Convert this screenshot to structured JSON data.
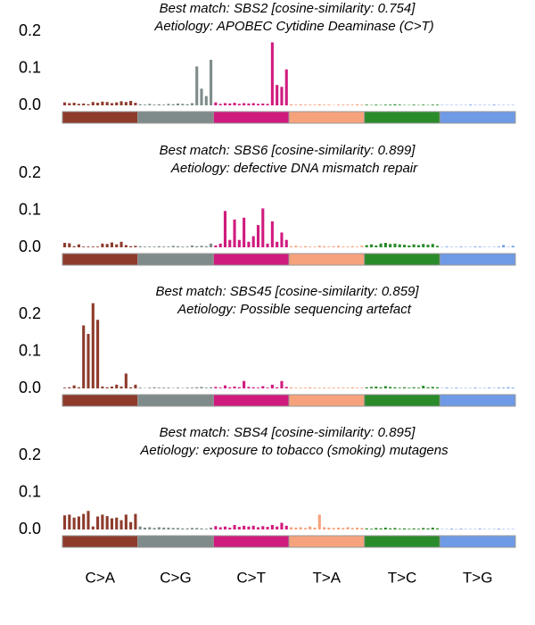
{
  "mutation_classes": [
    {
      "label": "C>A",
      "color": "#8e3b2c"
    },
    {
      "label": "C>G",
      "color": "#7e8b8a"
    },
    {
      "label": "C>T",
      "color": "#d01b7e"
    },
    {
      "label": "T>A",
      "color": "#f6a27c"
    },
    {
      "label": "T>C",
      "color": "#2a8b2a"
    },
    {
      "label": "T>G",
      "color": "#6e9ae6"
    }
  ],
  "chart_data": [
    {
      "type": "bar",
      "title": "Best match: SBS2 [cosine-similarity: 0.754]",
      "subtitle": "Aetiology: APOBEC Cytidine Deaminase (C>T)",
      "ylim": [
        0,
        0.2
      ],
      "yticks": [
        {
          "value": 0,
          "label": "0.0"
        },
        0.1,
        0.2
      ],
      "values": [
        0.008,
        0.006,
        0.007,
        0.004,
        0.005,
        0.003,
        0.009,
        0.007,
        0.01,
        0.009,
        0.006,
        0.008,
        0.011,
        0.009,
        0.012,
        0.007,
        0.003,
        0.002,
        0.004,
        0.002,
        0.003,
        0.002,
        0.004,
        0.003,
        0.005,
        0.004,
        0.003,
        0.006,
        0.105,
        0.045,
        0.025,
        0.123,
        0.008,
        0.004,
        0.006,
        0.005,
        0.007,
        0.004,
        0.006,
        0.005,
        0.006,
        0.004,
        0.005,
        0.004,
        0.17,
        0.055,
        0.05,
        0.097,
        0.003,
        0.002,
        0.003,
        0.002,
        0.002,
        0.002,
        0.003,
        0.002,
        0.002,
        0.001,
        0.002,
        0.002,
        0.002,
        0.002,
        0.003,
        0.002,
        0.002,
        0.001,
        0.002,
        0.001,
        0.002,
        0.002,
        0.003,
        0.002,
        0.001,
        0.001,
        0.002,
        0.001,
        0.002,
        0.001,
        0.002,
        0.002,
        0.001,
        0.001,
        0.001,
        0.001,
        0.001,
        0.001,
        0.002,
        0.001,
        0.001,
        0.001,
        0.001,
        0.002,
        0.001,
        0.001,
        0.001,
        0.001
      ]
    },
    {
      "type": "bar",
      "title": "Best match: SBS6 [cosine-similarity: 0.899]",
      "subtitle": "Aetiology: defective DNA mismatch repair",
      "ylim": [
        0,
        0.2
      ],
      "yticks": [
        {
          "value": 0,
          "label": "0.0"
        },
        0.1,
        0.2
      ],
      "values": [
        0.012,
        0.011,
        0.003,
        0.008,
        0.002,
        0.002,
        0.002,
        0.002,
        0.01,
        0.009,
        0.013,
        0.008,
        0.015,
        0.006,
        0.003,
        0.004,
        0.003,
        0.002,
        0.002,
        0.002,
        0.003,
        0.002,
        0.002,
        0.004,
        0.003,
        0.002,
        0.002,
        0.005,
        0.003,
        0.004,
        0.003,
        0.01,
        0.005,
        0.01,
        0.098,
        0.02,
        0.075,
        0.02,
        0.08,
        0.015,
        0.03,
        0.06,
        0.105,
        0.01,
        0.07,
        0.015,
        0.04,
        0.02,
        0.003,
        0.004,
        0.002,
        0.003,
        0.002,
        0.002,
        0.004,
        0.003,
        0.002,
        0.003,
        0.004,
        0.002,
        0.002,
        0.003,
        0.002,
        0.004,
        0.006,
        0.008,
        0.005,
        0.01,
        0.012,
        0.009,
        0.01,
        0.008,
        0.007,
        0.005,
        0.008,
        0.006,
        0.009,
        0.007,
        0.009,
        0.004,
        0.001,
        0.002,
        0.001,
        0.001,
        0.002,
        0.001,
        0.001,
        0.002,
        0.002,
        0.001,
        0.001,
        0.001,
        0.002,
        0.006,
        0.001,
        0.004
      ]
    },
    {
      "type": "bar",
      "title": "Best match: SBS45 [cosine-similarity: 0.859]",
      "subtitle": "Aetiology: Possible sequencing artefact",
      "ylim": [
        0,
        0.24
      ],
      "yticks": [
        {
          "value": 0,
          "label": "0.0"
        },
        0.1,
        0.2
      ],
      "values": [
        0.002,
        0.003,
        0.008,
        0.003,
        0.17,
        0.147,
        0.23,
        0.185,
        0.005,
        0.003,
        0.005,
        0.01,
        0.005,
        0.04,
        0.003,
        0.01,
        0.002,
        0.001,
        0.002,
        0.003,
        0.002,
        0.002,
        0.002,
        0.001,
        0.002,
        0.001,
        0.002,
        0.002,
        0.003,
        0.004,
        0.002,
        0.003,
        0.004,
        0.002,
        0.008,
        0.003,
        0.005,
        0.003,
        0.02,
        0.004,
        0.003,
        0.002,
        0.006,
        0.002,
        0.01,
        0.003,
        0.02,
        0.004,
        0.003,
        0.002,
        0.002,
        0.002,
        0.003,
        0.002,
        0.002,
        0.002,
        0.002,
        0.002,
        0.002,
        0.002,
        0.002,
        0.003,
        0.002,
        0.002,
        0.003,
        0.004,
        0.005,
        0.003,
        0.006,
        0.004,
        0.003,
        0.002,
        0.003,
        0.002,
        0.003,
        0.002,
        0.007,
        0.003,
        0.004,
        0.003,
        0.001,
        0.002,
        0.001,
        0.002,
        0.001,
        0.001,
        0.001,
        0.002,
        0.001,
        0.001,
        0.002,
        0.001,
        0.002,
        0.002,
        0.003,
        0.002
      ]
    },
    {
      "type": "bar",
      "title": "Best match: SBS4 [cosine-similarity: 0.895]",
      "subtitle": "Aetiology: exposure to tobacco (smoking) mutagens",
      "ylim": [
        0,
        0.2
      ],
      "yticks": [
        {
          "value": 0,
          "label": "0.0"
        },
        0.1,
        0.2
      ],
      "values": [
        0.038,
        0.04,
        0.032,
        0.035,
        0.042,
        0.05,
        0.008,
        0.035,
        0.04,
        0.036,
        0.03,
        0.032,
        0.025,
        0.04,
        0.02,
        0.042,
        0.008,
        0.005,
        0.006,
        0.004,
        0.006,
        0.005,
        0.005,
        0.004,
        0.004,
        0.003,
        0.003,
        0.004,
        0.004,
        0.003,
        0.002,
        0.005,
        0.009,
        0.006,
        0.008,
        0.005,
        0.012,
        0.007,
        0.01,
        0.008,
        0.01,
        0.006,
        0.009,
        0.007,
        0.012,
        0.008,
        0.018,
        0.01,
        0.006,
        0.005,
        0.006,
        0.004,
        0.008,
        0.005,
        0.04,
        0.006,
        0.005,
        0.004,
        0.005,
        0.004,
        0.006,
        0.004,
        0.005,
        0.004,
        0.003,
        0.002,
        0.004,
        0.003,
        0.005,
        0.003,
        0.004,
        0.002,
        0.003,
        0.002,
        0.003,
        0.002,
        0.004,
        0.003,
        0.005,
        0.003,
        0.001,
        0.001,
        0.002,
        0.001,
        0.002,
        0.001,
        0.001,
        0.001,
        0.002,
        0.001,
        0.001,
        0.001,
        0.002,
        0.001,
        0.001,
        0.001
      ]
    }
  ]
}
